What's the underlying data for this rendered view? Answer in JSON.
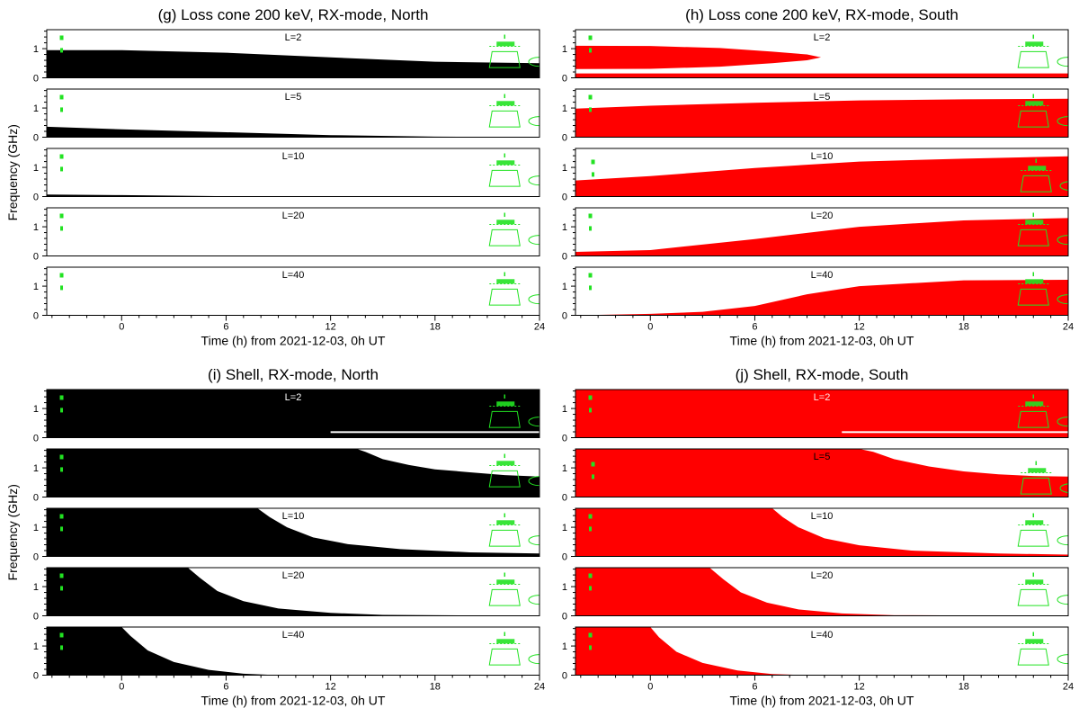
{
  "figure": {
    "ylabel": "Frequency (GHz)",
    "xlabel": "Time (h) from 2021-12-03, 0h UT"
  },
  "chart_data": [
    {
      "type": "area",
      "title": "(g) Loss cone 200 keV, RX-mode, North",
      "fill": "#000000",
      "xlabel": "Time (h) from 2021-12-03, 0h UT",
      "ylabel": "Frequency (GHz)",
      "xlim": [
        -4.3,
        24
      ],
      "ylim": [
        0,
        1.65
      ],
      "xticks": [
        0,
        6,
        12,
        18,
        24
      ],
      "yticks": [
        0,
        1
      ],
      "rows": [
        {
          "label": "L=2",
          "x": [
            -4.3,
            0,
            6,
            12,
            18,
            24
          ],
          "upper": [
            0.95,
            0.95,
            0.86,
            0.7,
            0.55,
            0.5
          ]
        },
        {
          "label": "L=5",
          "x": [
            -4.3,
            0,
            6,
            12,
            18,
            24
          ],
          "upper": [
            0.36,
            0.27,
            0.17,
            0.07,
            0.02,
            0.0
          ]
        },
        {
          "label": "L=10",
          "x": [
            -4.3,
            0,
            3,
            6,
            8,
            24
          ],
          "upper": [
            0.07,
            0.05,
            0.03,
            0.01,
            0.0,
            0.0
          ]
        },
        {
          "label": "L=20",
          "x": [
            -4.3,
            24
          ],
          "upper": [
            0.0,
            0.0
          ]
        },
        {
          "label": "L=40",
          "x": [
            -4.3,
            24
          ],
          "upper": [
            0.0,
            0.0
          ]
        }
      ]
    },
    {
      "type": "area",
      "title": "(h) Loss cone 200 keV, RX-mode, South",
      "fill": "#ff0000",
      "xlabel": "Time (h) from 2021-12-03, 0h UT",
      "ylabel": "Frequency (GHz)",
      "xlim": [
        -4.3,
        24
      ],
      "ylim": [
        0,
        1.65
      ],
      "xticks": [
        0,
        6,
        12,
        18,
        24
      ],
      "yticks": [
        0,
        1
      ],
      "rows": [
        {
          "label": "L=2",
          "x": [
            -4.3,
            24
          ],
          "upper": [
            0.15,
            0.15
          ],
          "band": {
            "x": [
              -4.3,
              0,
              4,
              7,
              9,
              9.8
            ],
            "upper": [
              1.1,
              1.09,
              1.02,
              0.9,
              0.8,
              0.7
            ],
            "lower": [
              0.3,
              0.31,
              0.38,
              0.5,
              0.6,
              0.7
            ]
          }
        },
        {
          "label": "L=5",
          "x": [
            -4.3,
            0,
            6,
            12,
            18,
            24
          ],
          "upper": [
            0.98,
            1.08,
            1.18,
            1.26,
            1.3,
            1.32
          ]
        },
        {
          "label": "L=10",
          "x": [
            -4.3,
            0,
            6,
            12,
            18,
            24
          ],
          "upper": [
            0.55,
            0.7,
            0.98,
            1.2,
            1.3,
            1.38
          ]
        },
        {
          "label": "L=20",
          "x": [
            -4.3,
            0,
            6,
            12,
            18,
            24
          ],
          "upper": [
            0.14,
            0.2,
            0.58,
            1.0,
            1.22,
            1.3
          ]
        },
        {
          "label": "L=40",
          "x": [
            -4.3,
            0,
            3,
            6,
            9,
            12,
            18,
            24
          ],
          "upper": [
            0.0,
            0.05,
            0.12,
            0.32,
            0.72,
            1.0,
            1.2,
            1.22
          ]
        }
      ]
    },
    {
      "type": "area",
      "title": "(i) Shell, RX-mode, North",
      "fill": "#000000",
      "xlabel": "Time (h) from 2021-12-03, 0h UT",
      "ylabel": "Frequency (GHz)",
      "xlim": [
        -4.3,
        24
      ],
      "ylim": [
        0,
        1.65
      ],
      "xticks": [
        0,
        6,
        12,
        18,
        24
      ],
      "yticks": [
        0,
        1
      ],
      "rows": [
        {
          "label": "L=2",
          "x": [
            -4.3,
            24
          ],
          "upper": [
            1.65,
            1.65
          ],
          "gap": {
            "x0": 12,
            "x1": 24,
            "y0": 0.16,
            "y1": 0.22
          }
        },
        {
          "label": "L=5",
          "x": [
            -4.3,
            13.5,
            14,
            15,
            16.5,
            18,
            20,
            22,
            24
          ],
          "upper": [
            1.65,
            1.65,
            1.55,
            1.3,
            1.1,
            0.95,
            0.85,
            0.75,
            0.7
          ]
        },
        {
          "label": "L=10",
          "x": [
            -4.3,
            7.8,
            8.5,
            9.5,
            11,
            13,
            16,
            20,
            24
          ],
          "upper": [
            1.65,
            1.65,
            1.35,
            1.0,
            0.65,
            0.42,
            0.25,
            0.14,
            0.1
          ]
        },
        {
          "label": "L=20",
          "x": [
            -4.3,
            3.8,
            4.5,
            5.5,
            7,
            9,
            12,
            15,
            24
          ],
          "upper": [
            1.65,
            1.65,
            1.3,
            0.85,
            0.5,
            0.25,
            0.1,
            0.03,
            0.0
          ]
        },
        {
          "label": "L=40",
          "x": [
            -4.3,
            0,
            0.5,
            1.5,
            3,
            5,
            7,
            9,
            24
          ],
          "upper": [
            1.65,
            1.65,
            1.35,
            0.85,
            0.45,
            0.18,
            0.05,
            0.0,
            0.0
          ]
        }
      ]
    },
    {
      "type": "area",
      "title": "(j) Shell, RX-mode, South",
      "fill": "#ff0000",
      "xlabel": "Time (h) from 2021-12-03, 0h UT",
      "ylabel": "Frequency (GHz)",
      "xlim": [
        -4.3,
        24
      ],
      "ylim": [
        0,
        1.65
      ],
      "xticks": [
        0,
        6,
        12,
        18,
        24
      ],
      "yticks": [
        0,
        1
      ],
      "rows": [
        {
          "label": "L=2",
          "x": [
            -4.3,
            24
          ],
          "upper": [
            1.65,
            1.65
          ],
          "gap": {
            "x0": 11,
            "x1": 24,
            "y0": 0.16,
            "y1": 0.22
          }
        },
        {
          "label": "L=5",
          "x": [
            -4.3,
            12,
            12.8,
            14,
            16,
            18,
            20,
            22,
            24
          ],
          "upper": [
            1.65,
            1.65,
            1.55,
            1.3,
            1.05,
            0.88,
            0.78,
            0.72,
            0.7
          ]
        },
        {
          "label": "L=10",
          "x": [
            -4.3,
            7,
            7.6,
            8.5,
            10,
            12,
            15,
            20,
            24
          ],
          "upper": [
            1.65,
            1.65,
            1.35,
            1.0,
            0.62,
            0.38,
            0.2,
            0.1,
            0.06
          ]
        },
        {
          "label": "L=20",
          "x": [
            -4.3,
            3.4,
            4.2,
            5.2,
            6.7,
            8.5,
            11,
            14,
            24
          ],
          "upper": [
            1.65,
            1.65,
            1.25,
            0.8,
            0.45,
            0.22,
            0.08,
            0.02,
            0.0
          ]
        },
        {
          "label": "L=40",
          "x": [
            -4.3,
            0,
            0.5,
            1.5,
            3,
            5,
            7,
            9,
            24
          ],
          "upper": [
            1.65,
            1.65,
            1.3,
            0.8,
            0.42,
            0.16,
            0.04,
            0.0,
            0.0
          ]
        }
      ]
    }
  ]
}
